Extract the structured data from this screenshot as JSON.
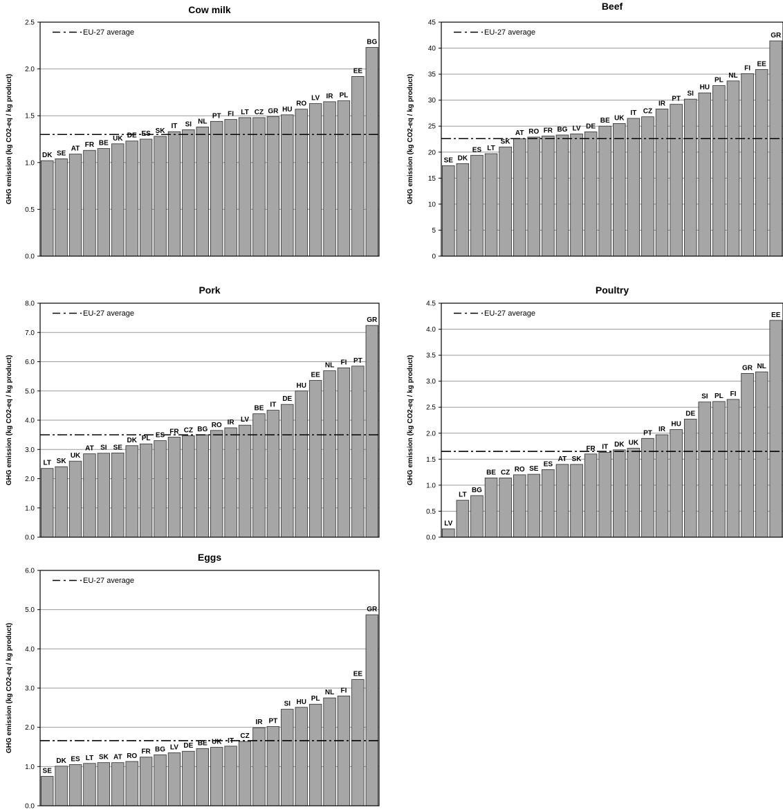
{
  "colors": {
    "bar": "#a6a6a6",
    "bar_edge": "#2a2a2a",
    "grid": "#9a9a9a",
    "avg_line": "#000000"
  },
  "chart_data": [
    {
      "type": "bar",
      "title": "Cow milk",
      "ylabel": "GHG emission (kg CO2-eq / kg product)",
      "ylim": [
        0,
        2.5
      ],
      "yticks": [
        "0.0",
        "0.5",
        "1.0",
        "1.5",
        "2.0",
        "2.5"
      ],
      "grid": true,
      "legend": {
        "label": "EU-27 average",
        "position": "top-left"
      },
      "average": 1.3,
      "categories": [
        "DK",
        "SE",
        "AT",
        "FR",
        "BE",
        "UK",
        "DE",
        "ES",
        "SK",
        "IT",
        "SI",
        "NL",
        "PT",
        "FI",
        "LT",
        "CZ",
        "GR",
        "HU",
        "RO",
        "LV",
        "IR",
        "PL",
        "EE",
        "BG"
      ],
      "values": [
        1.02,
        1.04,
        1.09,
        1.13,
        1.15,
        1.2,
        1.23,
        1.25,
        1.28,
        1.33,
        1.35,
        1.38,
        1.44,
        1.46,
        1.48,
        1.48,
        1.49,
        1.51,
        1.57,
        1.63,
        1.65,
        1.66,
        1.92,
        2.23
      ]
    },
    {
      "type": "bar",
      "title": "Beef",
      "ylabel": "GHG emission (kg CO2-eq / kg product)",
      "ylim": [
        0,
        45
      ],
      "yticks": [
        "0",
        "5",
        "10",
        "15",
        "20",
        "25",
        "30",
        "35",
        "40",
        "45"
      ],
      "grid": true,
      "legend": {
        "label": "EU-27 average",
        "position": "top-left"
      },
      "average": 22.6,
      "categories": [
        "SE",
        "DK",
        "ES",
        "LT",
        "SK",
        "AT",
        "RO",
        "FR",
        "BG",
        "LV",
        "DE",
        "BE",
        "UK",
        "IT",
        "CZ",
        "IR",
        "PT",
        "SI",
        "HU",
        "PL",
        "NL",
        "FI",
        "EE",
        "GR"
      ],
      "values": [
        17.4,
        17.8,
        19.4,
        19.7,
        21.0,
        22.6,
        22.9,
        23.1,
        23.3,
        23.5,
        23.9,
        25.0,
        25.5,
        26.5,
        26.8,
        28.3,
        29.2,
        30.2,
        31.4,
        32.8,
        33.7,
        35.1,
        35.9,
        41.4
      ]
    },
    {
      "type": "bar",
      "title": "Pork",
      "ylabel": "GHG emission (kg CO2-eq / kg product)",
      "ylim": [
        0,
        8
      ],
      "yticks": [
        "0.0",
        "1.0",
        "2.0",
        "3.0",
        "4.0",
        "5.0",
        "6.0",
        "7.0",
        "8.0"
      ],
      "grid": true,
      "legend": {
        "label": "EU-27 average",
        "position": "top-left"
      },
      "average": 3.5,
      "categories": [
        "LT",
        "SK",
        "UK",
        "AT",
        "SI",
        "SE",
        "DK",
        "PL",
        "ES",
        "FR",
        "CZ",
        "BG",
        "RO",
        "IR",
        "LV",
        "BE",
        "IT",
        "DE",
        "HU",
        "EE",
        "NL",
        "FI",
        "PT",
        "GR"
      ],
      "values": [
        2.35,
        2.41,
        2.6,
        2.85,
        2.87,
        2.88,
        3.13,
        3.19,
        3.3,
        3.42,
        3.47,
        3.5,
        3.65,
        3.74,
        3.83,
        4.22,
        4.34,
        4.54,
        5.0,
        5.36,
        5.69,
        5.79,
        5.85,
        7.24
      ]
    },
    {
      "type": "bar",
      "title": "Poultry",
      "ylabel": "GHG emission (kg CO2-eq / kg product)",
      "ylim": [
        0,
        4.5
      ],
      "yticks": [
        "0.0",
        "0.5",
        "1.0",
        "1.5",
        "2.0",
        "2.5",
        "3.0",
        "3.5",
        "4.0",
        "4.5"
      ],
      "grid": true,
      "legend": {
        "label": "EU-27 average",
        "position": "top-left"
      },
      "average": 1.65,
      "categories": [
        "LV",
        "LT",
        "BG",
        "BE",
        "CZ",
        "RO",
        "SE",
        "ES",
        "AT",
        "SK",
        "FR",
        "IT",
        "DK",
        "UK",
        "PT",
        "IR",
        "HU",
        "DE",
        "SI",
        "PL",
        "FI",
        "GR",
        "NL",
        "EE"
      ],
      "values": [
        0.16,
        0.71,
        0.8,
        1.14,
        1.14,
        1.2,
        1.21,
        1.3,
        1.4,
        1.4,
        1.6,
        1.63,
        1.68,
        1.71,
        1.9,
        1.97,
        2.07,
        2.27,
        2.6,
        2.61,
        2.65,
        3.15,
        3.18,
        4.17
      ]
    },
    {
      "type": "bar",
      "title": "Eggs",
      "ylabel": "GHG emission (kg CO2-eq / kg product)",
      "ylim": [
        0,
        6
      ],
      "yticks": [
        "0.0",
        "1.0",
        "2.0",
        "3.0",
        "4.0",
        "5.0",
        "6.0"
      ],
      "grid": true,
      "legend": {
        "label": "EU-27 average",
        "position": "top-left"
      },
      "average": 1.66,
      "categories": [
        "SE",
        "DK",
        "ES",
        "LT",
        "SK",
        "AT",
        "RO",
        "FR",
        "BG",
        "LV",
        "DE",
        "BE",
        "UK",
        "IT",
        "CZ",
        "IR",
        "PT",
        "SI",
        "HU",
        "PL",
        "NL",
        "FI",
        "EE",
        "GR"
      ],
      "values": [
        0.75,
        1.01,
        1.05,
        1.08,
        1.1,
        1.1,
        1.13,
        1.24,
        1.3,
        1.35,
        1.39,
        1.46,
        1.49,
        1.52,
        1.64,
        1.99,
        2.02,
        2.46,
        2.51,
        2.59,
        2.75,
        2.8,
        3.22,
        4.87
      ]
    }
  ]
}
